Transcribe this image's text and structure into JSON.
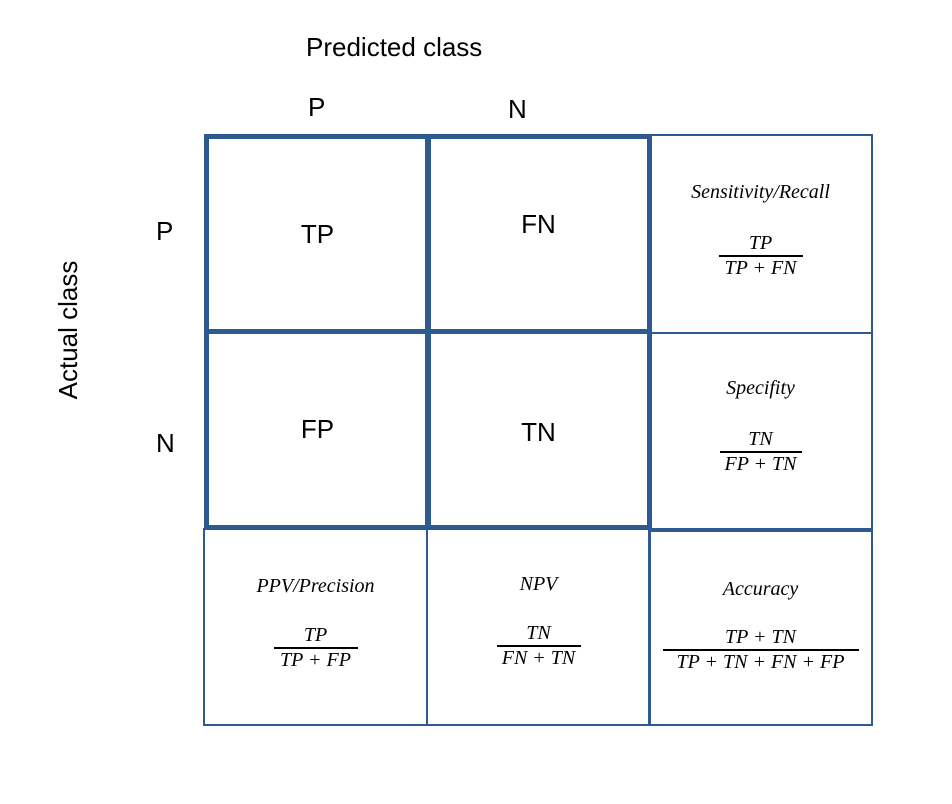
{
  "header": {
    "predicted": "Predicted class",
    "actual": "Actual class"
  },
  "columns": [
    "P",
    "N"
  ],
  "rows": [
    "P",
    "N"
  ],
  "matrix": {
    "tp": "TP",
    "fn": "FN",
    "fp": "FP",
    "tn": "TN"
  },
  "metrics": {
    "recall": {
      "label": "Sensitivity/Recall",
      "num": "TP",
      "den": "TP + FN"
    },
    "specificity": {
      "label": "Specifity",
      "num": "TN",
      "den": "FP + TN"
    },
    "precision": {
      "label": "PPV/Precision",
      "num": "TP",
      "den": "TP + FP"
    },
    "npv": {
      "label": "NPV",
      "num": "TN",
      "den": "FN + TN"
    },
    "accuracy": {
      "label": "Accuracy",
      "num": "TP + TN",
      "den": "TP + TN +  FN + FP"
    }
  },
  "colors": {
    "border": "#2e5a92"
  }
}
